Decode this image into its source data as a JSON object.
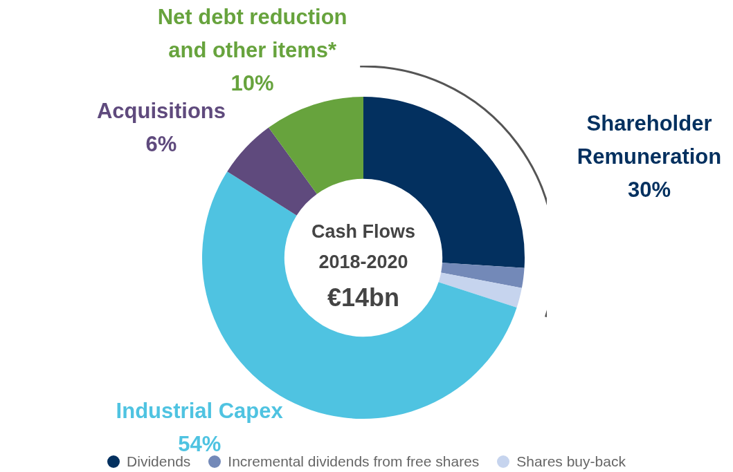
{
  "chart_data": {
    "type": "donut",
    "title": "Cash Flows 2018-2020",
    "subtitle": "€14bn",
    "categories": [
      "Dividends",
      "Incremental dividends from free shares",
      "Shares buy-back",
      "Industrial Capex",
      "Acquisitions",
      "Net debt reduction and other items*"
    ],
    "values": [
      26,
      2,
      2,
      54,
      6,
      10
    ],
    "colors": [
      "#03305f",
      "#7389b8",
      "#c6d4ee",
      "#4fc3e1",
      "#5f4a7d",
      "#67a33d"
    ],
    "value_labels": [
      null,
      null,
      null,
      "54%",
      "6%",
      "10%"
    ],
    "annotations": [
      "Shareholder Remuneration 30%"
    ],
    "legend": "bottom"
  }
}
